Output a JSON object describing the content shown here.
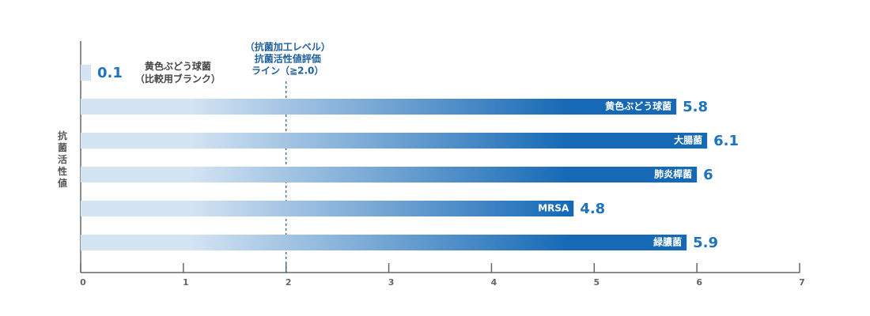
{
  "chart_data": {
    "type": "bar",
    "orientation": "horizontal",
    "y_label": "抗菌活性値",
    "categories": [
      "黄色ぶどう球菌\n（比較用ブランク）",
      "黄色ぶどう球菌",
      "大腸菌",
      "肺炎桿菌",
      "MRSA",
      "緑膿菌"
    ],
    "values": [
      0.1,
      5.8,
      6.1,
      6.0,
      4.8,
      5.9
    ],
    "gradient": [
      "#d4e4f3",
      "#1669b5"
    ],
    "label_color": "#1e73be",
    "xlim": [
      0,
      7
    ],
    "xticks": [
      0,
      1,
      2,
      3,
      4,
      5,
      6,
      7
    ],
    "reference_line": {
      "value": 2,
      "lines": [
        "（抗菌加工レベル）",
        "抗菌活性値評価",
        "ライン（≧2.0）"
      ]
    }
  }
}
